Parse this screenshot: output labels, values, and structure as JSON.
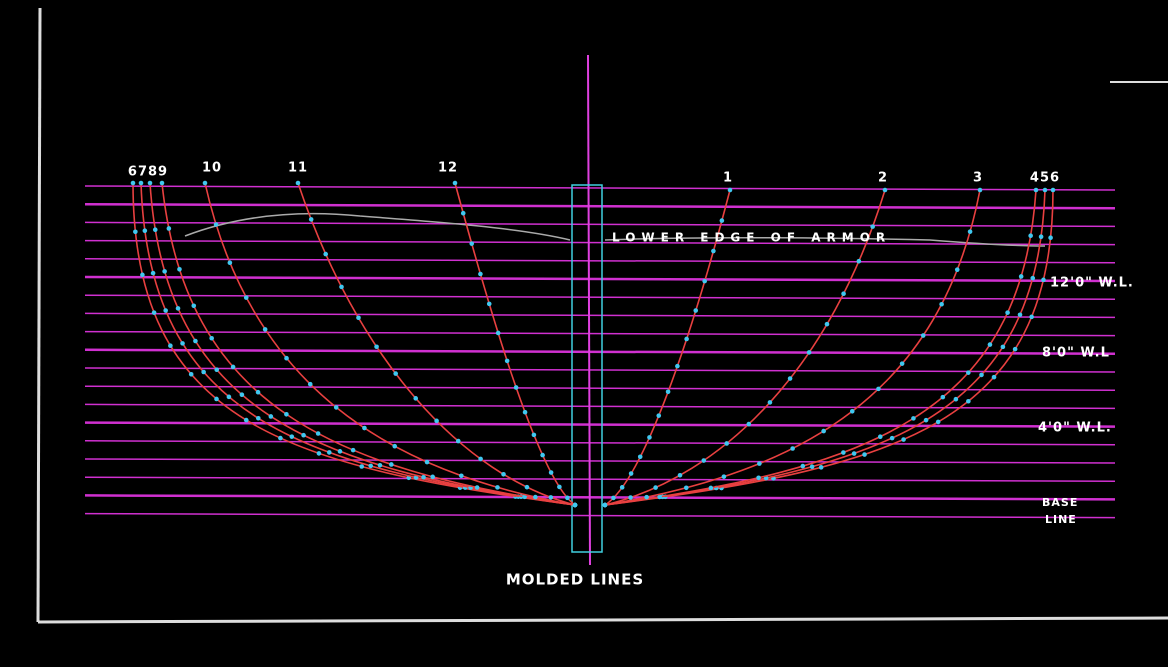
{
  "stations_left": [
    "6789",
    "10",
    "11",
    "12"
  ],
  "stations_right": [
    "1",
    "2",
    "3",
    "456"
  ],
  "armor_label": "LOWER EDGE OF ARMOR",
  "waterlines": [
    "12'0\" W.L.",
    "8'0\" W.L",
    "4'0\" W.L."
  ],
  "base_line": [
    "BASE",
    "LINE"
  ],
  "caption": "MOLDED LINES"
}
